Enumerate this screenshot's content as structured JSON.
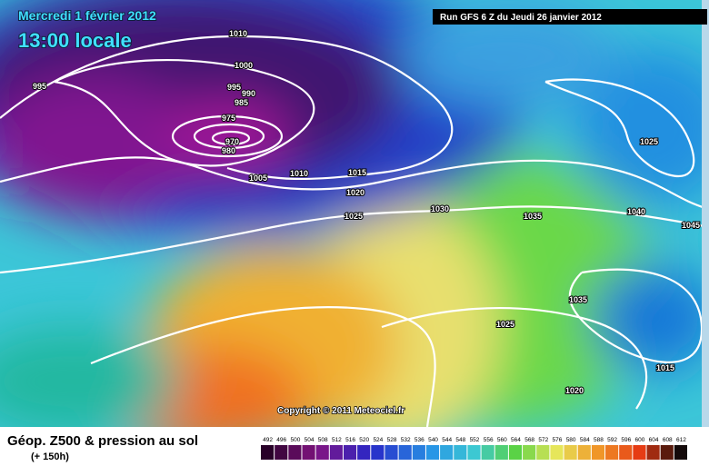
{
  "header": {
    "date": "Mercredi 1 février 2012",
    "time": "13:00 locale",
    "run": "Run GFS 6 Z du Jeudi 26 janvier 2012"
  },
  "isobar_labels": [
    "1010",
    "1000",
    "995",
    "995",
    "990",
    "985",
    "975",
    "970",
    "980",
    "1005",
    "1010",
    "1015",
    "1020",
    "1025",
    "1030",
    "1035",
    "1040",
    "1045",
    "1025",
    "1035",
    "1025",
    "1015",
    "1020"
  ],
  "copyright": "Copyright © 2011 Meteociel.fr",
  "legend": {
    "title": "Géop. Z500 & pression au sol",
    "subtitle": "(+ 150h)",
    "scale": [
      "492",
      "496",
      "500",
      "504",
      "508",
      "512",
      "516",
      "520",
      "524",
      "528",
      "532",
      "536",
      "540",
      "544",
      "548",
      "552",
      "556",
      "560",
      "564",
      "568",
      "572",
      "576",
      "580",
      "584",
      "588",
      "592",
      "596",
      "600",
      "604",
      "608",
      "612"
    ]
  }
}
